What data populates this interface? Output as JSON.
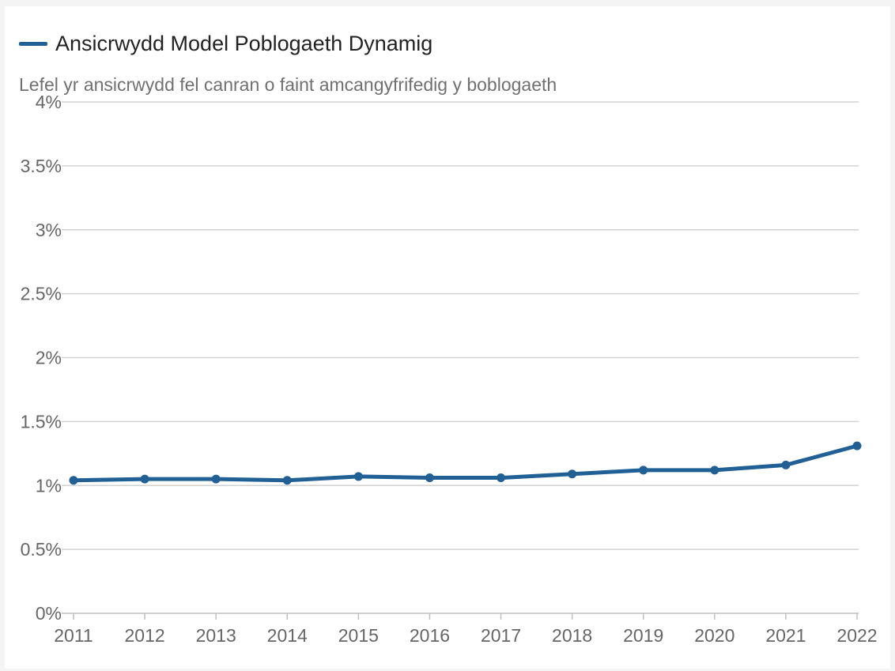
{
  "colors": {
    "series": "#206095",
    "grid": "#d2d2d2",
    "axis": "#bfbfbf",
    "tick_text": "#666666"
  },
  "chart_data": {
    "type": "line",
    "title": "",
    "subtitle": "Lefel yr ansicrwydd fel canran o faint amcangyfrifedig y boblogaeth",
    "xlabel": "",
    "ylabel": "",
    "legend_position": "top-left",
    "grid": true,
    "x": [
      "2011",
      "2012",
      "2013",
      "2014",
      "2015",
      "2016",
      "2017",
      "2018",
      "2019",
      "2020",
      "2021",
      "2022"
    ],
    "series": [
      {
        "name": "Ansicrwydd Model Poblogaeth Dynamig",
        "values": [
          1.04,
          1.05,
          1.05,
          1.04,
          1.07,
          1.06,
          1.06,
          1.09,
          1.12,
          1.12,
          1.16,
          1.31
        ]
      }
    ],
    "ylim": [
      0,
      4
    ],
    "yticks": [
      0,
      0.5,
      1,
      1.5,
      2,
      2.5,
      3,
      3.5,
      4
    ],
    "ytick_labels": [
      "0%",
      "0.5%",
      "1%",
      "1.5%",
      "2%",
      "2.5%",
      "3%",
      "3.5%",
      "4%"
    ]
  }
}
